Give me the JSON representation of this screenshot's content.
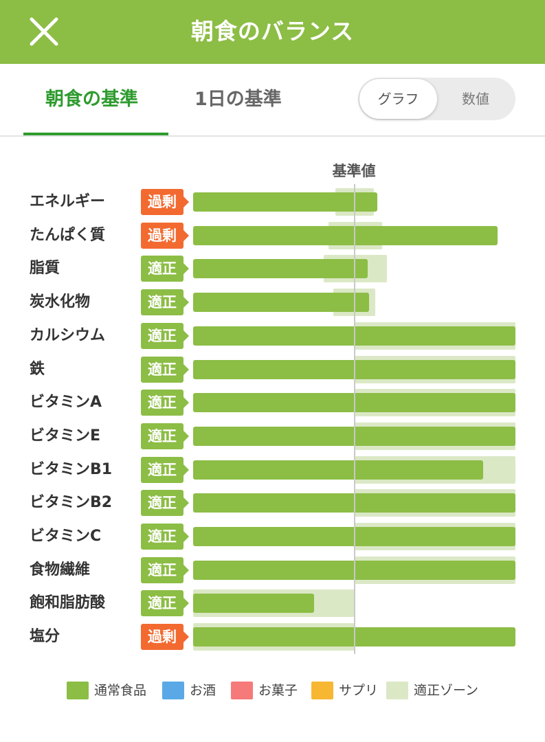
{
  "header": {
    "title": "朝食のバランス",
    "close_icon": "close-icon"
  },
  "tabs": [
    {
      "label": "朝食の基準",
      "active": true
    },
    {
      "label": "1日の基準",
      "active": false
    }
  ],
  "view_toggle": {
    "options": [
      "グラフ",
      "数値"
    ],
    "selected": "グラフ"
  },
  "chart_data": {
    "type": "bar",
    "orientation": "horizontal",
    "reference_label": "基準値",
    "reference_value": 100,
    "x_range": [
      0,
      200
    ],
    "categories": [
      "エネルギー",
      "たんぱく質",
      "脂質",
      "炭水化物",
      "カルシウム",
      "鉄",
      "ビタミンA",
      "ビタミンE",
      "ビタミンB1",
      "ビタミンB2",
      "ビタミンC",
      "食物繊維",
      "飽和脂肪酸",
      "塩分"
    ],
    "status": [
      "過剰",
      "過剰",
      "適正",
      "適正",
      "適正",
      "適正",
      "適正",
      "適正",
      "適正",
      "適正",
      "適正",
      "適正",
      "適正",
      "過剰"
    ],
    "values": [
      114,
      189,
      108,
      109,
      200,
      200,
      200,
      200,
      180,
      200,
      200,
      200,
      75,
      200
    ],
    "zones": [
      [
        88,
        112
      ],
      [
        84,
        117
      ],
      [
        81,
        120
      ],
      [
        87,
        113
      ],
      [
        100,
        200
      ],
      [
        100,
        200
      ],
      [
        100,
        200
      ],
      [
        100,
        200
      ],
      [
        100,
        200
      ],
      [
        100,
        200
      ],
      [
        100,
        200
      ],
      [
        100,
        200
      ],
      [
        0,
        100
      ],
      [
        0,
        100
      ]
    ],
    "series": [
      {
        "name": "通常食品",
        "color": "#8cbd45"
      },
      {
        "name": "お酒",
        "color": "#5aa9e6"
      },
      {
        "name": "お菓子",
        "color": "#f77a7a"
      },
      {
        "name": "サプリ",
        "color": "#f7b733"
      },
      {
        "name": "適正ゾーン",
        "color": "#dbe8c6"
      }
    ],
    "status_colors": {
      "適正": "#8cbd45",
      "過剰": "#f26a30"
    },
    "legend_position": "bottom"
  }
}
